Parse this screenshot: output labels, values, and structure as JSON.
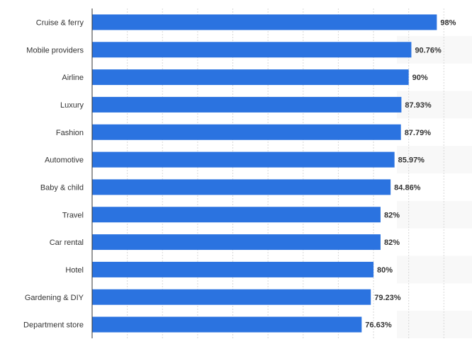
{
  "chart_data": {
    "type": "bar",
    "orientation": "horizontal",
    "categories": [
      "Cruise & ferry",
      "Mobile providers",
      "Airline",
      "Luxury",
      "Fashion",
      "Automotive",
      "Baby & child",
      "Travel",
      "Car rental",
      "Hotel",
      "Gardening & DIY",
      "Department store"
    ],
    "values": [
      98,
      90.76,
      90,
      87.93,
      87.79,
      85.97,
      84.86,
      82,
      82,
      80,
      79.23,
      76.63
    ],
    "value_labels": [
      "98%",
      "90.76%",
      "90%",
      "87.93%",
      "87.79%",
      "85.97%",
      "84.86%",
      "82%",
      "82%",
      "80%",
      "79.23%",
      "76.63%"
    ],
    "xlim": [
      0,
      108
    ],
    "gridlines": "vertical dashed",
    "title": "",
    "xlabel": "",
    "ylabel": "",
    "colors": {
      "bar": "#2b73e0",
      "band": "#f8f8f8",
      "grid": "#d8d8d8",
      "axis": "#333333",
      "text": "#333333"
    }
  }
}
